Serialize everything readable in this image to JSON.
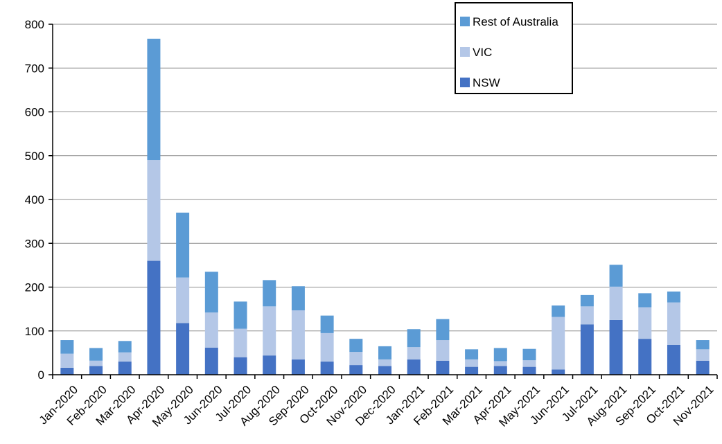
{
  "chart_data": {
    "type": "bar",
    "stacked": true,
    "categories": [
      "Jan-2020",
      "Feb-2020",
      "Mar-2020",
      "Apr-2020",
      "May-2020",
      "Jun-2020",
      "Jul-2020",
      "Aug-2020",
      "Sep-2020",
      "Oct-2020",
      "Nov-2020",
      "Dec-2020",
      "Jan-2021",
      "Feb-2021",
      "Mar-2021",
      "Apr-2021",
      "May-2021",
      "Jun-2021",
      "Jul-2021",
      "Aug-2021",
      "Sep-2021",
      "Oct-2021",
      "Nov-2021"
    ],
    "series": [
      {
        "name": "NSW",
        "color": "#4472C4",
        "values": [
          16,
          20,
          30,
          260,
          118,
          62,
          40,
          44,
          35,
          30,
          22,
          20,
          35,
          32,
          18,
          20,
          18,
          12,
          115,
          125,
          82,
          68,
          32
        ]
      },
      {
        "name": "VIC",
        "color": "#B4C7E7",
        "values": [
          32,
          12,
          21,
          230,
          104,
          80,
          65,
          112,
          112,
          65,
          30,
          15,
          28,
          47,
          17,
          11,
          15,
          120,
          41,
          76,
          72,
          97,
          26
        ]
      },
      {
        "name": "Rest of Australia",
        "color": "#5B9BD5",
        "values": [
          31,
          29,
          26,
          277,
          148,
          93,
          62,
          60,
          55,
          40,
          30,
          30,
          41,
          48,
          23,
          30,
          26,
          26,
          26,
          50,
          32,
          25,
          21
        ]
      }
    ],
    "legend_order": [
      "Rest of Australia",
      "VIC",
      "NSW"
    ],
    "legend_position": "top-right",
    "title": "",
    "xlabel": "",
    "ylabel": "",
    "ylim": [
      0,
      800
    ],
    "yticks": [
      0,
      100,
      200,
      300,
      400,
      500,
      600,
      700,
      800
    ],
    "grid": true
  }
}
